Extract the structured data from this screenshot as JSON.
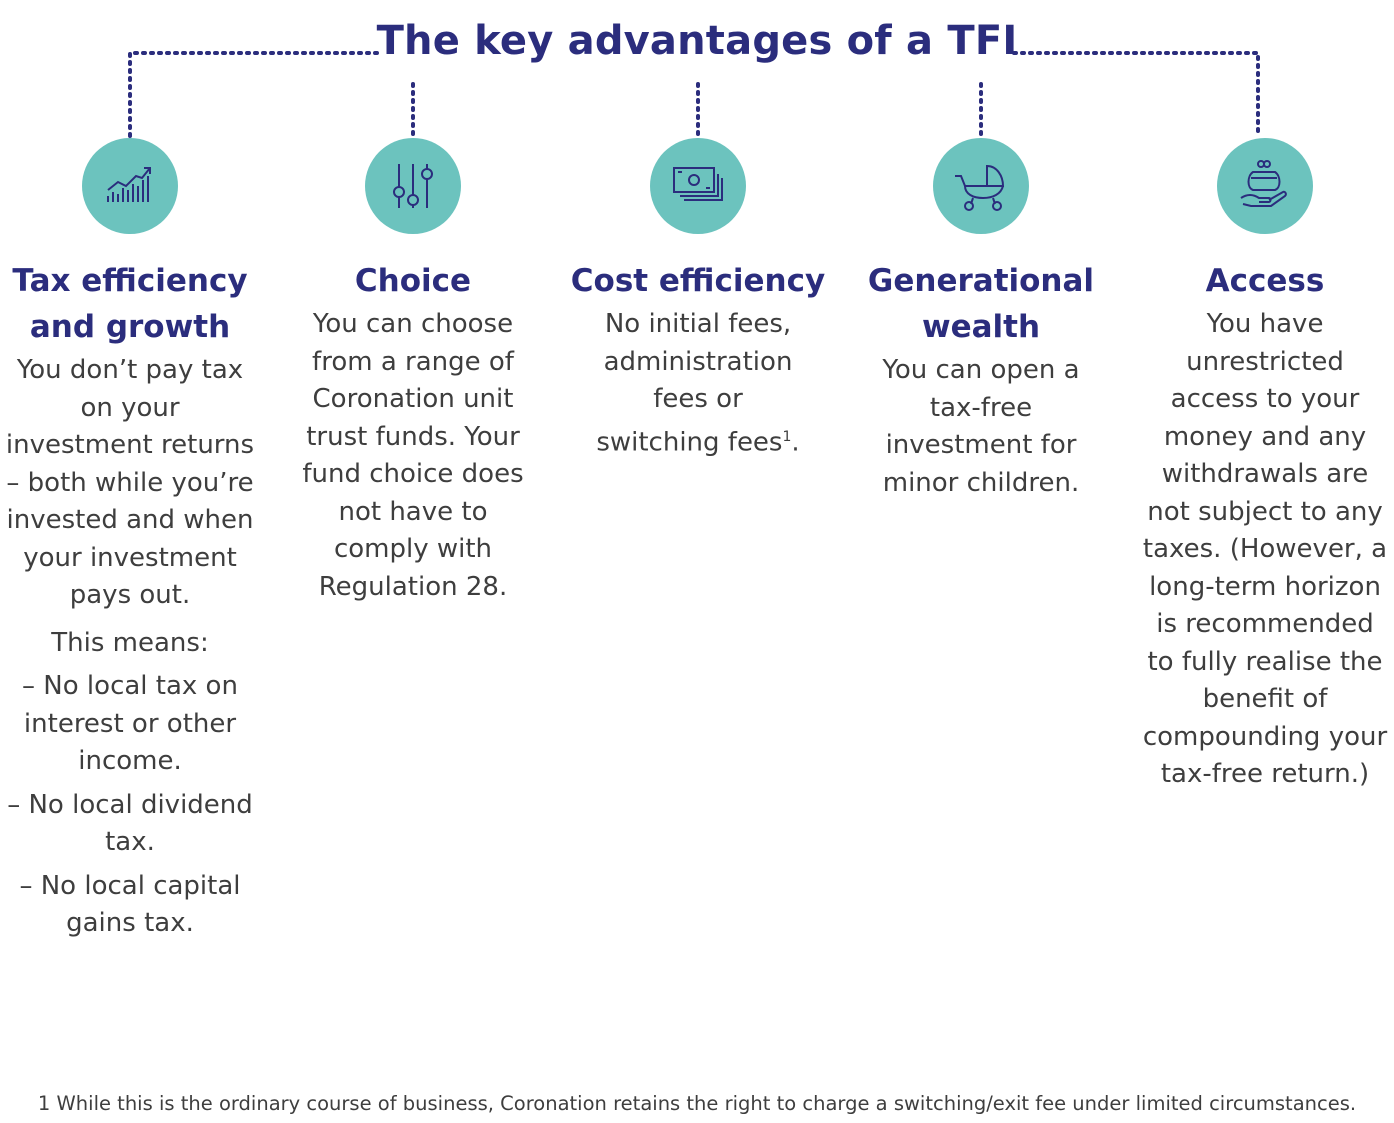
{
  "title": "The key advantages of a TFI",
  "colors": {
    "heading": "#2b2d7d",
    "circle": "#6cc3be",
    "text": "#3e3e3e"
  },
  "columns": [
    {
      "icon": "growth-chart-icon",
      "heading": "Tax efficiency and growth",
      "paragraphs": [
        "You don’t pay tax on your investment returns – both while you’re invested and when your investment pays out.",
        "This means:"
      ],
      "bullets": [
        "– No local tax on interest or other income.",
        "– No local dividend tax.",
        "– No local capital gains tax."
      ]
    },
    {
      "icon": "sliders-icon",
      "heading": "Choice",
      "paragraphs": [
        "You can choose from a range of Coronation unit trust funds. Your fund choice does not have to comply with Regulation 28."
      ]
    },
    {
      "icon": "banknotes-icon",
      "heading": "Cost efficiency",
      "paragraphs": [
        "No initial fees, administration fees or switching fees"
      ],
      "footnote_marker": "1",
      "after_marker": "."
    },
    {
      "icon": "pram-icon",
      "heading": "Generational wealth",
      "paragraphs": [
        "You can open a tax-free investment for minor children."
      ]
    },
    {
      "icon": "purse-in-hand-icon",
      "heading": "Access",
      "paragraphs": [
        "You have unrestricted access to your money and any withdrawals are not subject to any taxes. (However, a long-term horizon is recommended to fully realise the benefit of compounding your tax-free return.)"
      ]
    }
  ],
  "footnote": "1 While this is the ordinary course of business, Coronation retains the right to charge a switching/exit fee under limited circumstances."
}
